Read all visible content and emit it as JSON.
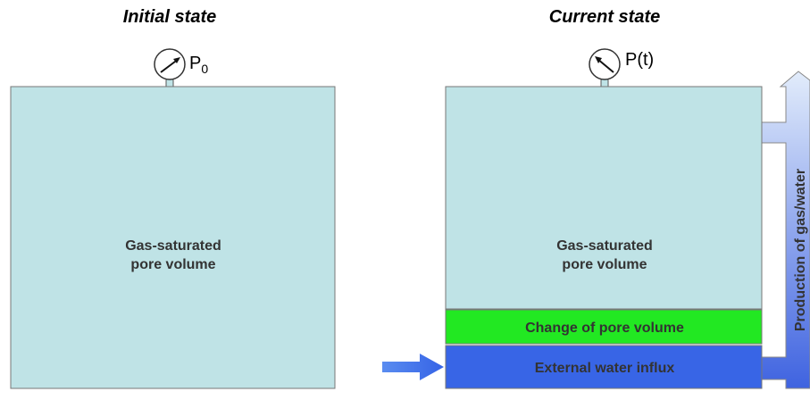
{
  "left": {
    "title": "Initial state",
    "gauge_label": "P",
    "gauge_subscript": "0",
    "box_label_line1": "Gas-saturated",
    "box_label_line2": "pore volume"
  },
  "right": {
    "title": "Current state",
    "gauge_label": "P(t)",
    "box_label_line1": "Gas-saturated",
    "box_label_line2": "pore volume",
    "middle_label": "Change of pore volume",
    "bottom_label": "External water influx",
    "production_label": "Production of gas/water"
  }
}
